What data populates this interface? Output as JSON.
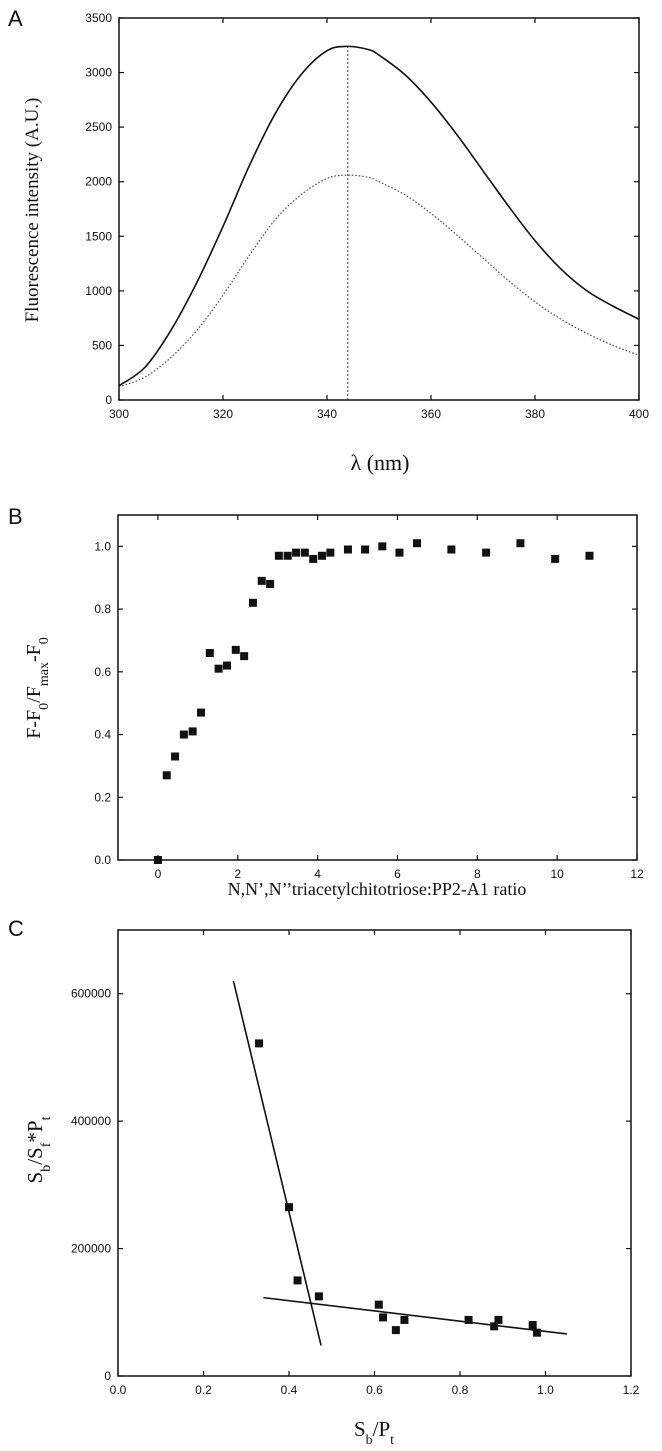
{
  "chart_data": [
    {
      "panel": "A",
      "type": "line",
      "xlabel": "λ (nm)",
      "ylabel": "Fluorescence intensity (A.U.)",
      "xlim": [
        300,
        400
      ],
      "ylim": [
        0,
        3500
      ],
      "xticks": [
        300,
        320,
        340,
        360,
        380,
        400
      ],
      "yticks": [
        0,
        500,
        1000,
        1500,
        2000,
        2500,
        3000,
        3500
      ],
      "vline_x": 344,
      "series": [
        {
          "style": "solid",
          "x": [
            300,
            305,
            310,
            315,
            320,
            325,
            330,
            335,
            340,
            344,
            348,
            350,
            355,
            360,
            365,
            370,
            375,
            380,
            385,
            390,
            395,
            400
          ],
          "values": [
            130,
            300,
            640,
            1080,
            1590,
            2140,
            2620,
            2980,
            3200,
            3240,
            3210,
            3160,
            2980,
            2730,
            2430,
            2100,
            1770,
            1460,
            1200,
            1000,
            860,
            740
          ]
        },
        {
          "style": "dotted",
          "x": [
            300,
            305,
            310,
            315,
            320,
            325,
            330,
            335,
            340,
            344,
            348,
            350,
            355,
            360,
            365,
            370,
            375,
            380,
            385,
            390,
            395,
            400
          ],
          "values": [
            120,
            210,
            390,
            640,
            960,
            1320,
            1650,
            1880,
            2030,
            2060,
            2040,
            2000,
            1880,
            1710,
            1510,
            1300,
            1090,
            900,
            740,
            610,
            500,
            410
          ]
        }
      ]
    },
    {
      "panel": "B",
      "type": "scatter",
      "xlabel": "N,N’,N’’triacetylchitotriose:PP2-A1 ratio",
      "ylabel_parts": [
        "F-F",
        "0",
        "/F",
        "max",
        "-F",
        "0"
      ],
      "xlim": [
        -1,
        12
      ],
      "ylim": [
        0,
        1.1
      ],
      "xticks": [
        0,
        2,
        4,
        6,
        8,
        10,
        12
      ],
      "yticks": [
        0.0,
        0.2,
        0.4,
        0.6,
        0.8,
        1.0
      ],
      "x": [
        0,
        0.22,
        0.43,
        0.65,
        0.87,
        1.08,
        1.3,
        1.52,
        1.73,
        1.95,
        2.16,
        2.38,
        2.6,
        2.81,
        3.03,
        3.25,
        3.46,
        3.68,
        3.89,
        4.11,
        4.32,
        4.76,
        5.19,
        5.62,
        6.05,
        6.49,
        7.35,
        8.22,
        9.08,
        9.95,
        10.81
      ],
      "values": [
        0.0,
        0.27,
        0.33,
        0.4,
        0.41,
        0.47,
        0.66,
        0.61,
        0.62,
        0.67,
        0.65,
        0.82,
        0.89,
        0.88,
        0.97,
        0.97,
        0.98,
        0.98,
        0.96,
        0.97,
        0.98,
        0.99,
        0.99,
        1.0,
        0.98,
        1.01,
        0.99,
        0.98,
        1.01,
        0.96,
        0.97
      ]
    },
    {
      "panel": "C",
      "type": "scatter",
      "xlabel_parts": [
        "S",
        "b",
        "/P",
        "t"
      ],
      "ylabel_parts": [
        "S",
        "b",
        "/S",
        "f",
        "*P",
        "t"
      ],
      "xlim": [
        0.0,
        1.2
      ],
      "ylim": [
        0,
        700000
      ],
      "xticks": [
        0.0,
        0.2,
        0.4,
        0.6,
        0.8,
        1.0,
        1.2
      ],
      "yticks": [
        0,
        200000,
        400000,
        600000
      ],
      "x": [
        0.33,
        0.4,
        0.42,
        0.47,
        0.61,
        0.62,
        0.65,
        0.67,
        0.82,
        0.88,
        0.89,
        0.97,
        0.98
      ],
      "values": [
        522000,
        265000,
        150000,
        125000,
        112000,
        92000,
        72000,
        88000,
        88000,
        78000,
        88000,
        80000,
        68000
      ],
      "fit_lines": [
        {
          "x": [
            0.27,
            0.475
          ],
          "y": [
            620000,
            48000
          ]
        },
        {
          "x": [
            0.34,
            1.05
          ],
          "y": [
            123000,
            66000
          ]
        }
      ]
    }
  ],
  "panel_letters": [
    "A",
    "B",
    "C"
  ]
}
